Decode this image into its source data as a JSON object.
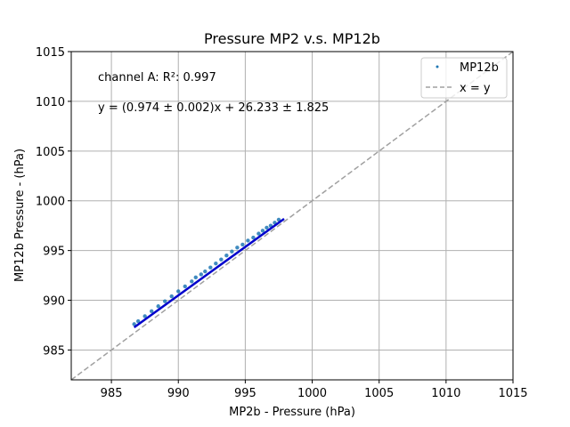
{
  "chart_data": {
    "type": "scatter",
    "title": "Pressure MP2 v.s. MP12b",
    "xlabel": "MP2b - Pressure (hPa)",
    "ylabel": "MP12b Pressure - (hPa)",
    "xlim": [
      982,
      1015
    ],
    "ylim": [
      982,
      1015
    ],
    "xticks": [
      985,
      990,
      995,
      1000,
      1005,
      1010,
      1015
    ],
    "yticks": [
      985,
      990,
      995,
      1000,
      1005,
      1010,
      1015
    ],
    "grid": true,
    "legend_position": "top-right",
    "annotations": [
      "channel A: R²: 0.997",
      "y = (0.974 ± 0.002)x + 26.233 ± 1.825"
    ],
    "series": [
      {
        "name": "MP12b",
        "kind": "scatter",
        "color": "#1f77b4",
        "x": [
          986.7,
          987.0,
          987.5,
          988.0,
          988.5,
          989.0,
          989.5,
          990.0,
          990.5,
          991.0,
          991.3,
          991.7,
          992.0,
          992.4,
          992.8,
          993.2,
          993.6,
          994.0,
          994.4,
          994.8,
          995.2,
          995.6,
          996.0,
          996.3,
          996.6,
          996.9,
          997.2,
          997.5
        ],
        "y": [
          987.6,
          987.9,
          988.4,
          988.9,
          989.4,
          989.9,
          990.4,
          990.9,
          991.4,
          991.9,
          992.3,
          992.6,
          992.9,
          993.3,
          993.7,
          994.1,
          994.5,
          994.9,
          995.3,
          995.6,
          996.0,
          996.3,
          996.7,
          997.0,
          997.3,
          997.5,
          997.8,
          998.1
        ]
      },
      {
        "name": "x = y",
        "kind": "line",
        "color": "#a0a0a0",
        "x": [
          982,
          1015
        ],
        "y": [
          982,
          1015
        ]
      }
    ],
    "fit_line": {
      "color": "#0000cc",
      "slope": 0.974,
      "intercept": 26.233,
      "x_range": [
        986.7,
        997.9
      ]
    }
  }
}
